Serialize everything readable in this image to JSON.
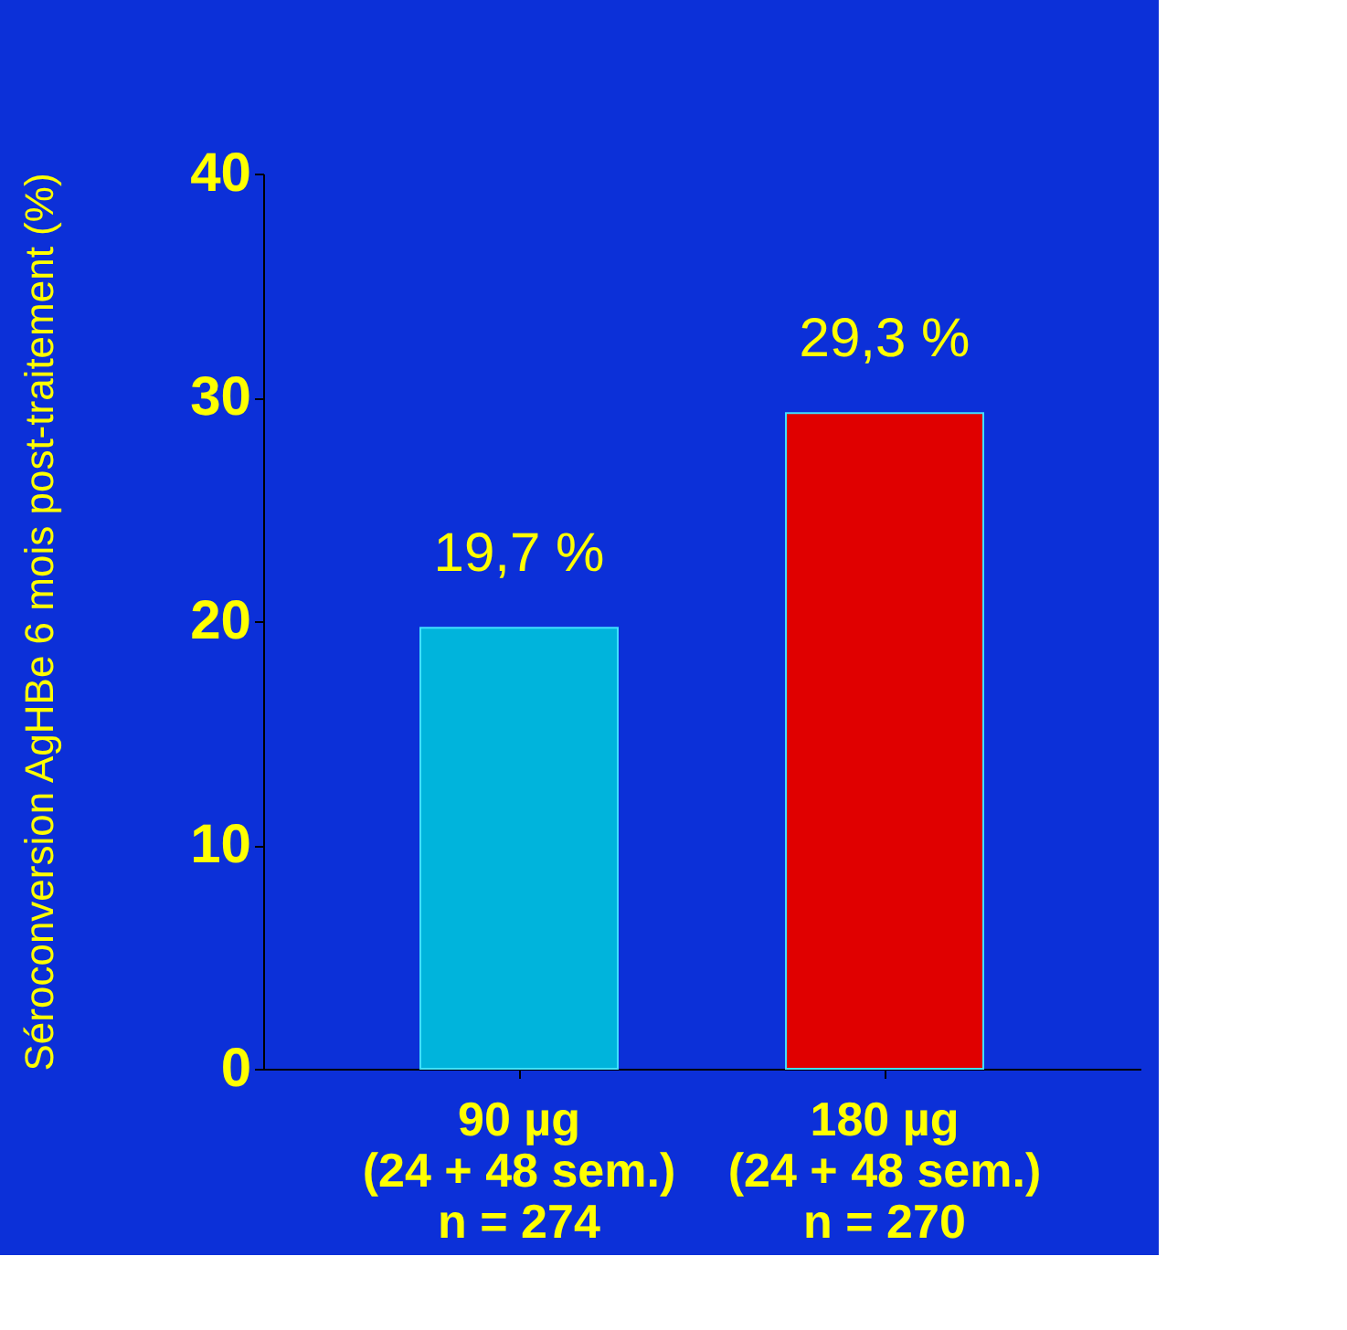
{
  "chart_data": {
    "type": "bar",
    "ylabel": "Séroconversion AgHBe 6 mois post-traitement (%)",
    "categories": [
      "90 µg\n(24 + 48 sem.)\nn = 274",
      "180 µg\n(24 + 48 sem.)\nn = 270"
    ],
    "values": [
      19.7,
      29.3
    ],
    "colors": [
      "#00b4dc",
      "#e00000"
    ],
    "value_labels": [
      "19,7 %",
      "29,3 %"
    ],
    "ylim": [
      0,
      40
    ],
    "yticks": [
      0,
      10,
      20,
      30,
      40
    ],
    "grid": false,
    "legend": false
  }
}
